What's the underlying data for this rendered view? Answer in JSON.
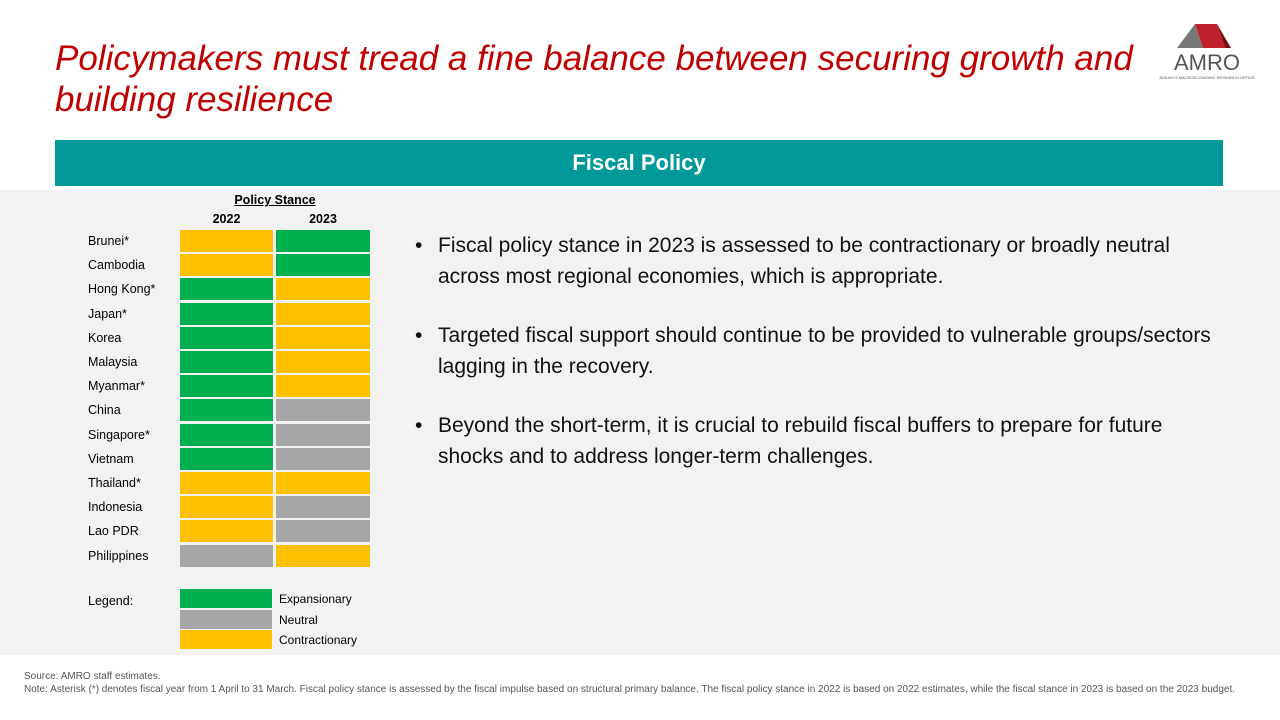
{
  "header": {
    "title": "Policymakers must tread a fine balance between securing growth and building resilience",
    "logo": "AMRO",
    "logo_subtitle": "ASEAN+3 MACROECONOMIC RESEARCH OFFICE"
  },
  "section_title": "Fiscal Policy",
  "table": {
    "title": "Policy Stance",
    "columns": [
      "2022",
      "2023"
    ],
    "rows": [
      {
        "country": "Brunei*",
        "stance": [
          2,
          0
        ]
      },
      {
        "country": "Cambodia",
        "stance": [
          2,
          0
        ]
      },
      {
        "country": "Hong Kong*",
        "stance": [
          0,
          2
        ]
      },
      {
        "country": "Japan*",
        "stance": [
          0,
          2
        ]
      },
      {
        "country": "Korea",
        "stance": [
          0,
          2
        ]
      },
      {
        "country": "Malaysia",
        "stance": [
          0,
          2
        ]
      },
      {
        "country": "Myanmar*",
        "stance": [
          0,
          2
        ]
      },
      {
        "country": "China",
        "stance": [
          0,
          1
        ]
      },
      {
        "country": "Singapore*",
        "stance": [
          0,
          1
        ]
      },
      {
        "country": "Vietnam",
        "stance": [
          0,
          1
        ]
      },
      {
        "country": "Thailand*",
        "stance": [
          2,
          2
        ]
      },
      {
        "country": "Indonesia",
        "stance": [
          2,
          1
        ]
      },
      {
        "country": "Lao PDR",
        "stance": [
          2,
          1
        ]
      },
      {
        "country": "Philippines",
        "stance": [
          1,
          2
        ]
      }
    ],
    "legend_title": "Legend:",
    "legend": [
      {
        "label": "Expansionary",
        "color": "#00b050"
      },
      {
        "label": "Neutral",
        "color": "#a6a6a6"
      },
      {
        "label": "Contractionary",
        "color": "#ffc000"
      }
    ]
  },
  "bullets": [
    "Fiscal policy stance in 2023 is assessed to be contractionary or broadly neutral across most regional economies, which is appropriate.",
    "Targeted fiscal support should continue to be provided to vulnerable groups/sectors lagging in the recovery.",
    "Beyond the short-term, it is crucial to rebuild fiscal buffers to prepare for future shocks and to address longer-term challenges."
  ],
  "footer": {
    "source": "Source: AMRO staff estimates.",
    "note": "Note:  Asterisk (*) denotes fiscal year from 1 April to 31 March. Fiscal policy stance is assessed by the fiscal impulse based on structural primary balance. The  fiscal policy stance in 2022 is based on 2022 estimates, while the fiscal stance in 2023 is based on the 2023 budget."
  }
}
